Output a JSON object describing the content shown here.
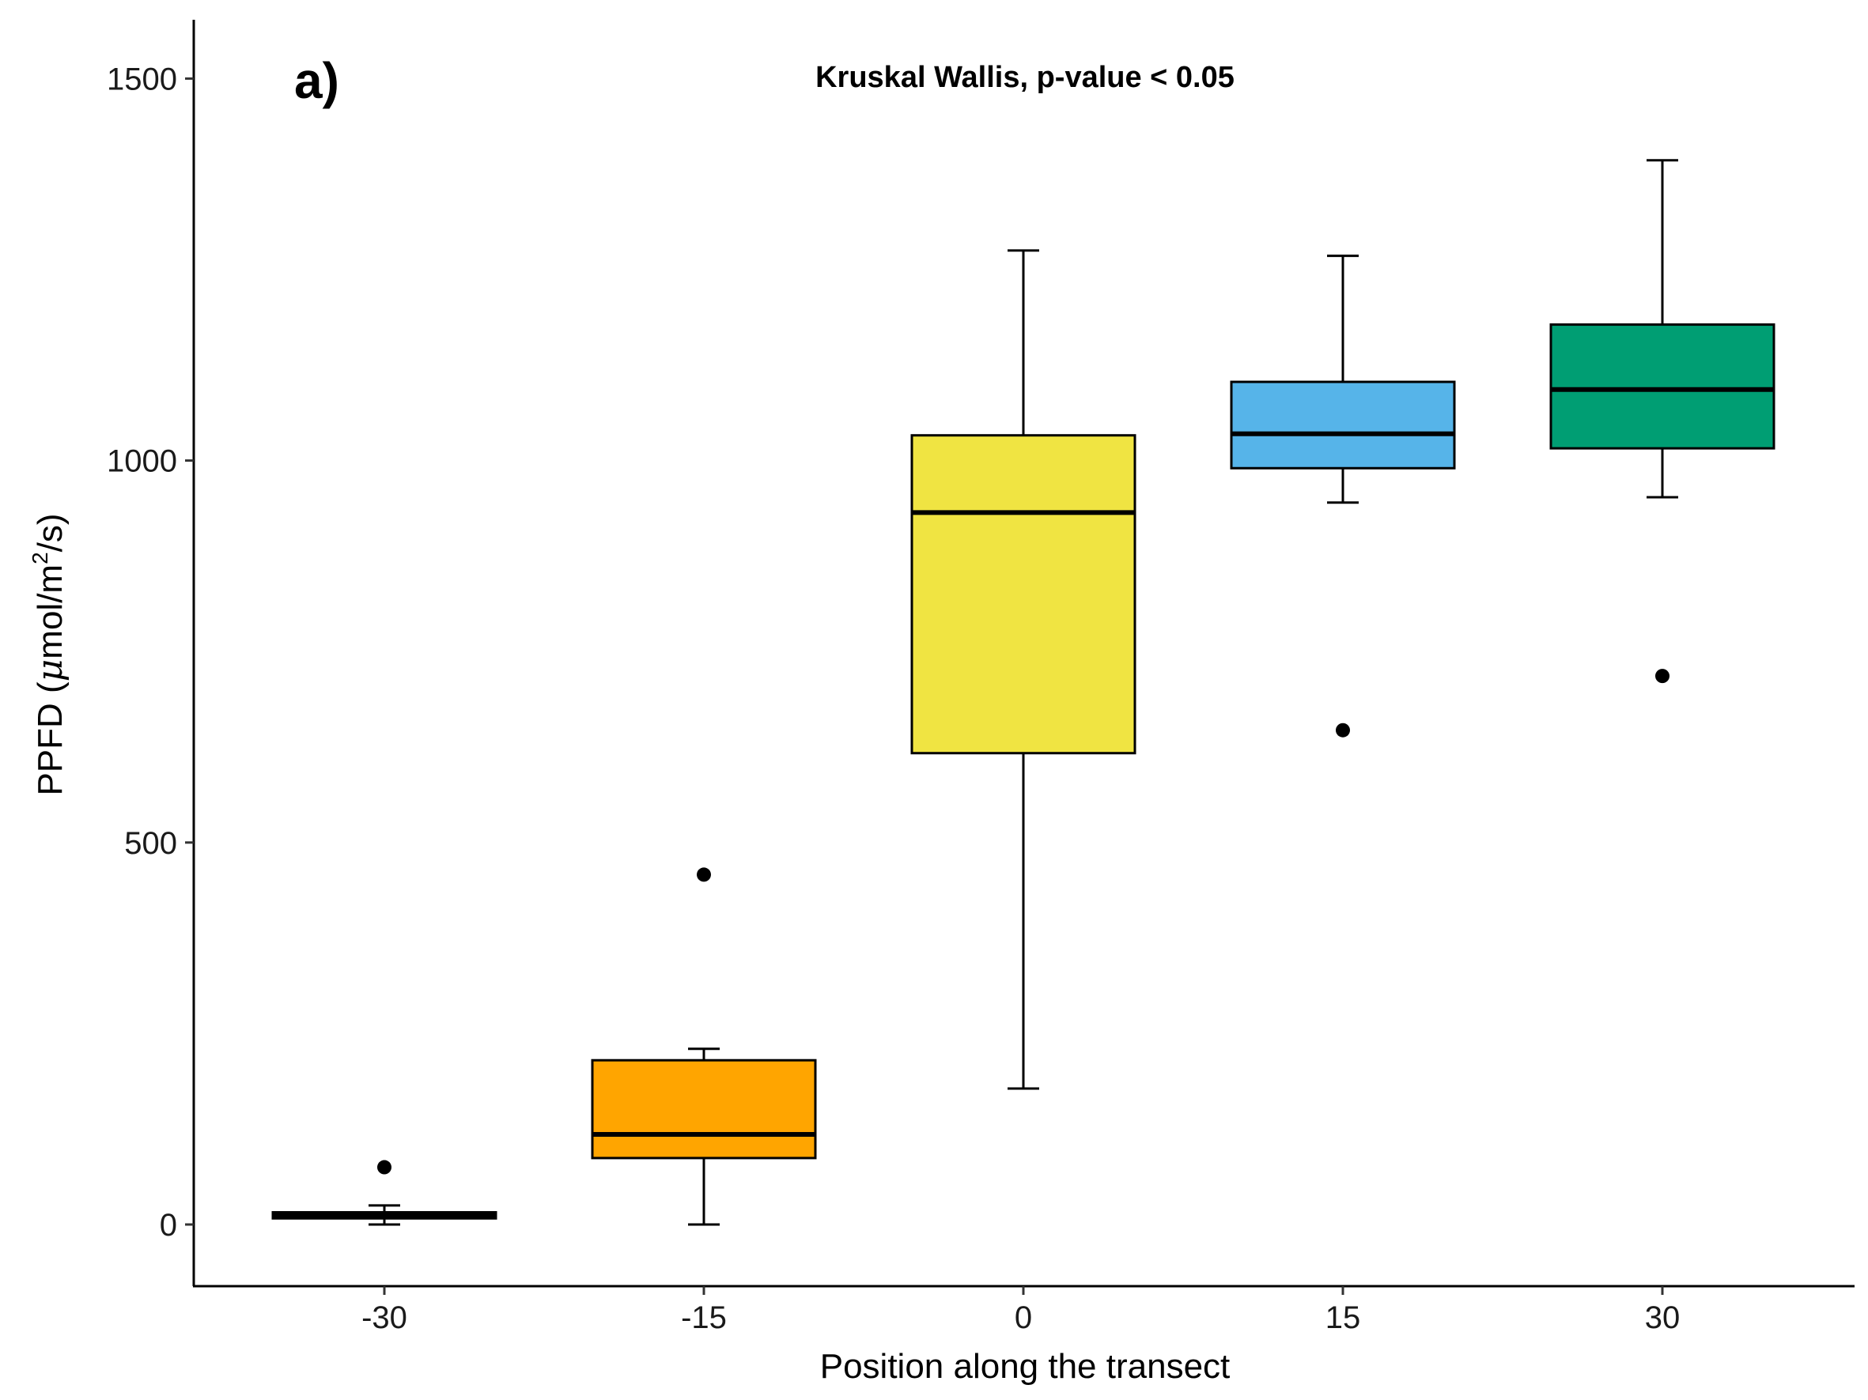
{
  "panel_label": "a)",
  "annotation": "Kruskal Wallis, p-value < 0.05",
  "chart_data": {
    "type": "boxplot",
    "xlabel": "Position along the transect",
    "ylabel_prefix": "PPFD (",
    "ylabel_mu": "μ",
    "ylabel_mid": "mol/m",
    "ylabel_sup": "2",
    "ylabel_suffix": "/s)",
    "ylim": [
      -75,
      1575
    ],
    "yticks": [
      0,
      500,
      1000,
      1500
    ],
    "categories": [
      "-30",
      "-15",
      "0",
      "15",
      "30"
    ],
    "grid": false,
    "legend": "none",
    "boxes": [
      {
        "category": "-30",
        "color": "#000000",
        "whisker_low": 0,
        "q1": 8,
        "median": 12,
        "q3": 16,
        "whisker_high": 25,
        "outliers": [
          75
        ]
      },
      {
        "category": "-15",
        "color": "#FFA500",
        "whisker_low": 0,
        "q1": 87,
        "median": 118,
        "q3": 215,
        "whisker_high": 230,
        "outliers": [
          458
        ]
      },
      {
        "category": "0",
        "color": "#F0E442",
        "whisker_low": 178,
        "q1": 617,
        "median": 932,
        "q3": 1033,
        "whisker_high": 1275,
        "outliers": []
      },
      {
        "category": "15",
        "color": "#56B4E9",
        "whisker_low": 945,
        "q1": 990,
        "median": 1035,
        "q3": 1103,
        "whisker_high": 1268,
        "outliers": [
          647
        ]
      },
      {
        "category": "30",
        "color": "#009E73",
        "whisker_low": 952,
        "q1": 1016,
        "median": 1093,
        "q3": 1178,
        "whisker_high": 1393,
        "outliers": [
          718
        ]
      }
    ]
  }
}
